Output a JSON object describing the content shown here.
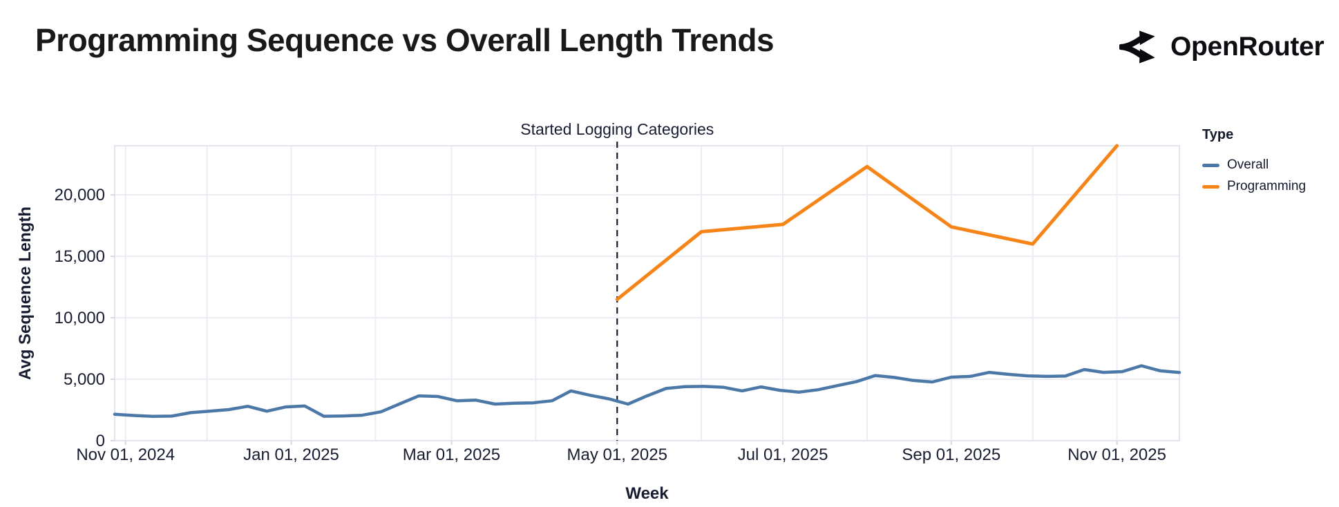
{
  "header": {
    "title": "Programming Sequence vs Overall Length Trends",
    "brand": "OpenRouter"
  },
  "chart_data": {
    "type": "line",
    "title": "Programming Sequence vs Overall Length Trends",
    "xlabel": "Week",
    "ylabel": "Avg Sequence Length",
    "x_domain": [
      "2024-10-28",
      "2025-11-24"
    ],
    "ylim": [
      0,
      24000
    ],
    "grid": true,
    "legend_position": "right",
    "y_ticks": [
      {
        "value": 0,
        "label": "0"
      },
      {
        "value": 5000,
        "label": "5,000"
      },
      {
        "value": 10000,
        "label": "10,000"
      },
      {
        "value": 15000,
        "label": "15,000"
      },
      {
        "value": 20000,
        "label": "20,000"
      }
    ],
    "x_ticks": [
      {
        "date": "2024-11-01",
        "label": "Nov 01, 2024"
      },
      {
        "date": "2025-01-01",
        "label": "Jan 01, 2025"
      },
      {
        "date": "2025-03-01",
        "label": "Mar 01, 2025"
      },
      {
        "date": "2025-05-01",
        "label": "May 01, 2025"
      },
      {
        "date": "2025-07-01",
        "label": "Jul 01, 2025"
      },
      {
        "date": "2025-09-01",
        "label": "Sep 01, 2025"
      },
      {
        "date": "2025-11-01",
        "label": "Nov 01, 2025"
      }
    ],
    "annotation": {
      "text": "Started Logging Categories",
      "date": "2025-05-01"
    },
    "legend": {
      "title": "Type",
      "entries": [
        {
          "label": "Overall",
          "color": "#4c78a8"
        },
        {
          "label": "Programming",
          "color": "#f58518"
        }
      ]
    },
    "series": [
      {
        "name": "Overall",
        "color": "#4c78a8",
        "stroke_width": 4.5,
        "x": [
          "2024-10-28",
          "2024-11-04",
          "2024-11-11",
          "2024-11-18",
          "2024-11-25",
          "2024-12-02",
          "2024-12-09",
          "2024-12-16",
          "2024-12-23",
          "2024-12-30",
          "2025-01-06",
          "2025-01-13",
          "2025-01-20",
          "2025-01-27",
          "2025-02-03",
          "2025-02-10",
          "2025-02-17",
          "2025-02-24",
          "2025-03-03",
          "2025-03-10",
          "2025-03-17",
          "2025-03-24",
          "2025-03-31",
          "2025-04-07",
          "2025-04-14",
          "2025-04-21",
          "2025-04-28",
          "2025-05-05",
          "2025-05-12",
          "2025-05-19",
          "2025-05-26",
          "2025-06-02",
          "2025-06-09",
          "2025-06-16",
          "2025-06-23",
          "2025-06-30",
          "2025-07-07",
          "2025-07-14",
          "2025-07-21",
          "2025-07-28",
          "2025-08-04",
          "2025-08-11",
          "2025-08-18",
          "2025-08-25",
          "2025-09-01",
          "2025-09-08",
          "2025-09-15",
          "2025-09-22",
          "2025-09-29",
          "2025-10-06",
          "2025-10-13",
          "2025-10-20",
          "2025-10-27",
          "2025-11-03",
          "2025-11-10",
          "2025-11-17",
          "2025-11-24"
        ],
        "values": [
          2150,
          2050,
          1980,
          2000,
          2280,
          2400,
          2530,
          2800,
          2400,
          2750,
          2820,
          1990,
          2010,
          2070,
          2350,
          3000,
          3650,
          3600,
          3250,
          3300,
          2980,
          3050,
          3080,
          3250,
          4050,
          3700,
          3400,
          2980,
          3650,
          4250,
          4400,
          4420,
          4350,
          4050,
          4380,
          4100,
          3950,
          4150,
          4480,
          4800,
          5300,
          5150,
          4900,
          4780,
          5170,
          5230,
          5560,
          5400,
          5280,
          5230,
          5260,
          5790,
          5560,
          5620,
          6100,
          5680,
          5550
        ]
      },
      {
        "name": "Programming",
        "color": "#f58518",
        "stroke_width": 5,
        "x": [
          "2025-05-01",
          "2025-06-01",
          "2025-07-01",
          "2025-08-01",
          "2025-09-01",
          "2025-10-01",
          "2025-11-01"
        ],
        "values": [
          11500,
          17000,
          17600,
          22300,
          17400,
          16000,
          24000
        ]
      }
    ]
  }
}
